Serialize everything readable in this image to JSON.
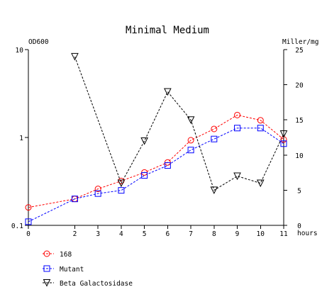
{
  "chart_data": {
    "type": "line",
    "title": "Minimal Medium",
    "xlabel": "hours",
    "ylabel_left": "OD600",
    "ylabel_right": "Miller/mg",
    "xlim": [
      0,
      11
    ],
    "x_ticks": [
      0,
      2,
      3,
      4,
      5,
      6,
      7,
      8,
      9,
      10,
      11
    ],
    "ylim_left": [
      0.1,
      10
    ],
    "yscale_left": "log",
    "y_ticks_left": [
      {
        "value": 0.1,
        "label": "0.1"
      },
      {
        "value": 1,
        "label": "1"
      },
      {
        "value": 10,
        "label": "10"
      }
    ],
    "ylim_right": [
      0,
      25
    ],
    "y_ticks_right": [
      0,
      5,
      10,
      15,
      20,
      25
    ],
    "grid": false,
    "legend_position": "bottom-left",
    "series": [
      {
        "name": "168",
        "axis": "left",
        "color": "#ff0000",
        "marker": "circle",
        "x": [
          0,
          2,
          3,
          4,
          5,
          6,
          7,
          8,
          9,
          10,
          11
        ],
        "y": [
          0.16,
          0.2,
          0.26,
          0.32,
          0.4,
          0.52,
          0.93,
          1.25,
          1.8,
          1.57,
          0.95
        ]
      },
      {
        "name": "Mutant",
        "axis": "left",
        "color": "#0000ff",
        "marker": "square",
        "x": [
          0,
          2,
          3,
          4,
          5,
          6,
          7,
          8,
          9,
          10,
          11
        ],
        "y": [
          0.11,
          0.2,
          0.23,
          0.25,
          0.37,
          0.48,
          0.72,
          0.96,
          1.28,
          1.28,
          0.85
        ]
      },
      {
        "name": "Beta Galactosidase",
        "axis": "right",
        "color": "#000000",
        "marker": "triangle-down",
        "x": [
          2,
          4,
          5,
          6,
          7,
          8,
          9,
          10,
          11
        ],
        "y": [
          24,
          6,
          12,
          19,
          15,
          5,
          7,
          6,
          13
        ]
      }
    ]
  }
}
